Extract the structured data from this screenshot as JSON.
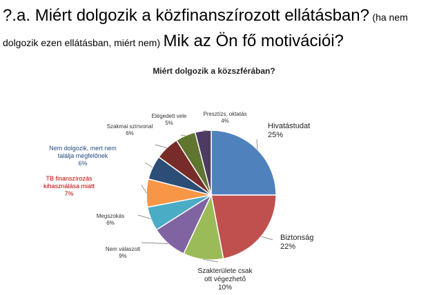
{
  "heading": {
    "prefix": "?.a. ",
    "main": "Miért dolgozik a közfinanszírozott ellátásban?",
    "paren": "(ha nem dolgozik ezen ellátásban, miért nem)",
    "motivation": "Mik az Ön fő motivációi?"
  },
  "chart_data": {
    "type": "pie",
    "title": "Miért dolgozik a közszférában?",
    "slices": [
      {
        "label": "Hivatástudat",
        "value": 25,
        "value_label": "25%",
        "color": "#4F81BD"
      },
      {
        "label": "Biztonság",
        "value": 22,
        "value_label": "22%",
        "color": "#C0504D"
      },
      {
        "label": "Szakterülete csak ott végezhető",
        "value": 10,
        "value_label": "10%",
        "color": "#9BBB59"
      },
      {
        "label": "Nem válaszolt",
        "value": 9,
        "value_label": "9%",
        "color": "#8064A2"
      },
      {
        "label": "Megszokás",
        "value": 6,
        "value_label": "6%",
        "color": "#4BACC6"
      },
      {
        "label": "TB finanszírozás kihasználása miatt",
        "value": 7,
        "value_label": "7%",
        "color": "#F79646"
      },
      {
        "label": "Nem dolgozik, mert nem találja megfelőnek",
        "value": 6,
        "value_label": "6%",
        "color": "#2C4D75"
      },
      {
        "label": "Szakmai színvonal",
        "value": 6,
        "value_label": "6%",
        "color": "#772C2A"
      },
      {
        "label": "Elégedett vele",
        "value": 5,
        "value_label": "5%",
        "color": "#5F7530"
      },
      {
        "label": "Presztízs, oktatás",
        "value": 4,
        "value_label": "4%",
        "color": "#4D3B62"
      }
    ]
  }
}
